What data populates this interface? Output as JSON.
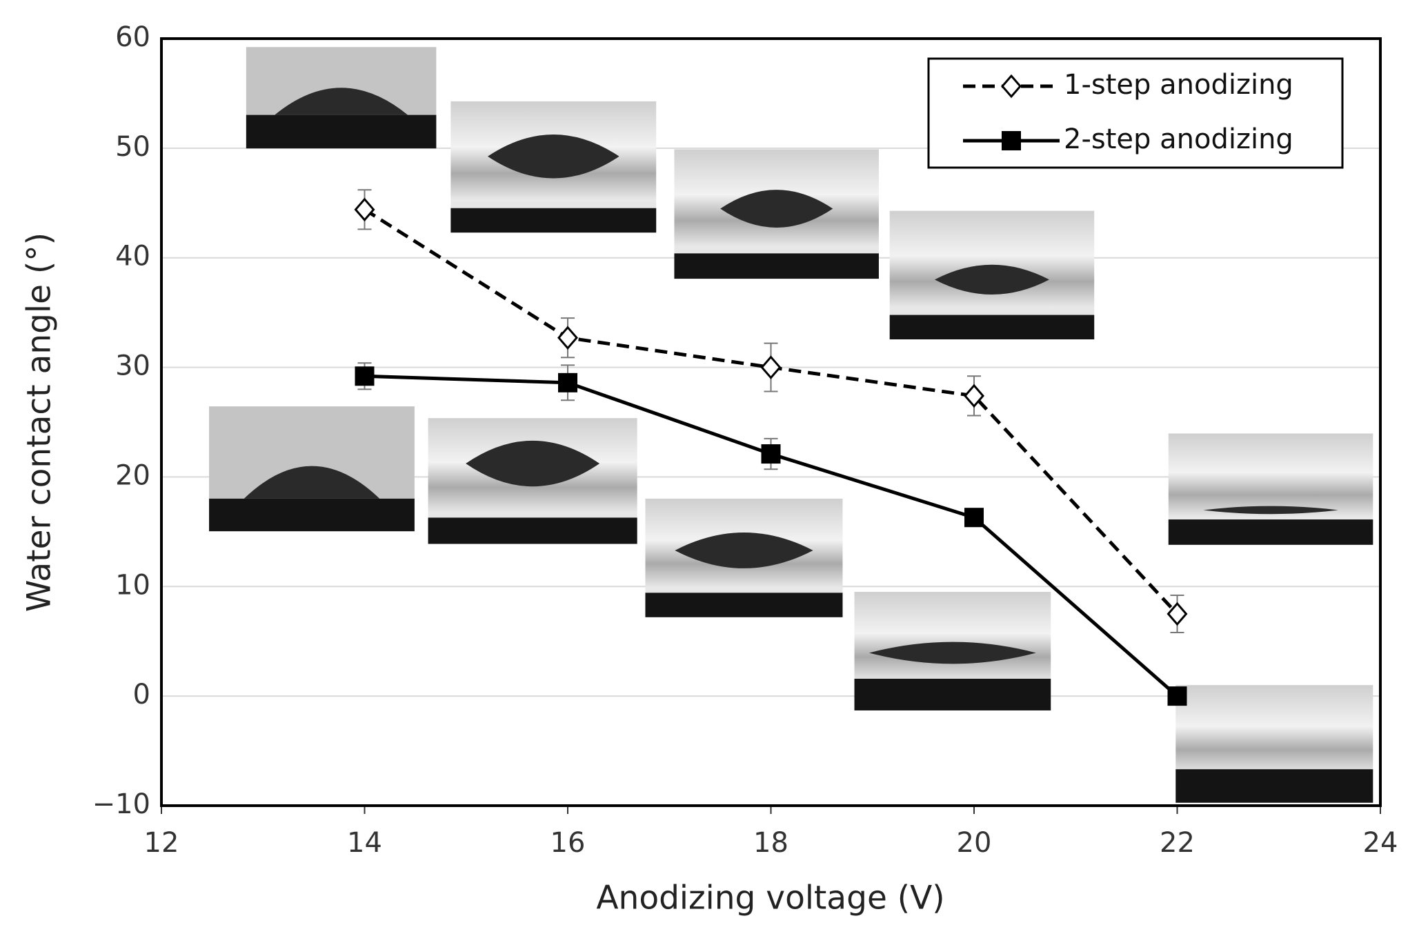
{
  "chart_data": {
    "type": "line",
    "x_label": "Anodizing voltage (V)",
    "y_label": "Water contact angle (°)",
    "x": [
      14,
      16,
      18,
      20,
      22
    ],
    "series": [
      {
        "name": "1-step anodizing",
        "color": "#000000",
        "marker": "diamond",
        "dashed": true,
        "values": [
          44.4,
          32.7,
          30.0,
          27.4,
          7.5
        ],
        "errors": [
          1.8,
          1.8,
          2.2,
          1.8,
          1.7
        ]
      },
      {
        "name": "2-step anodizing",
        "color": "#000000",
        "marker": "square",
        "dashed": false,
        "values": [
          29.2,
          28.6,
          22.1,
          16.3,
          0
        ],
        "errors": [
          1.2,
          1.6,
          1.4,
          0,
          0
        ]
      }
    ],
    "xlim": [
      12,
      24
    ],
    "xticks": [
      12,
      14,
      16,
      18,
      20,
      22,
      24
    ],
    "ylim": [
      -10,
      60
    ],
    "yticks": [
      {
        "value": -10,
        "label": "−10"
      },
      0,
      10,
      20,
      30,
      40,
      50,
      60
    ],
    "grid": true,
    "legend": "upper right"
  }
}
